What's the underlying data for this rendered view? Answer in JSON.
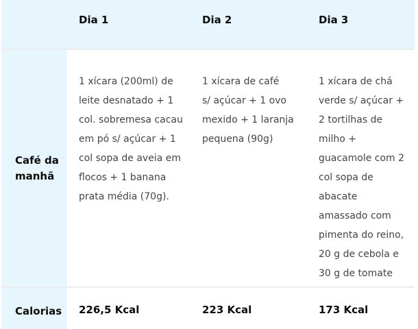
{
  "page": {
    "background": "#ffffff",
    "accent_cell_bg": "#e7f5fd",
    "divider_color": "#e9edef",
    "header_text_color": "#0d0d0d",
    "body_text_color": "#414549"
  },
  "table": {
    "corner_label": "",
    "columns": [
      "Dia 1",
      "Dia 2",
      "Dia 3"
    ],
    "rows": [
      {
        "label": "Café da\nmanhã",
        "cells": [
          "1 xícara (200ml) de\nleite desnatado + 1\ncol. sobremesa cacau\nem pó s/ açúcar + 1\ncol sopa de aveia em\nflocos + 1 banana\nprata média (70g).",
          "1 xícara de café\ns/ açúcar + 1 ovo\nmexido + 1 laranja\npequena (90g)",
          "1 xícara de chá\nverde s/ açúcar +\n2 tortilhas de\nmilho +\nguacamole com 2\ncol sopa de\nabacate\namassado com\npimenta do reino,\n20 g de cebola e\n30 g de tomate"
        ]
      },
      {
        "label": "Calorias",
        "cells": [
          "226,5 Kcal",
          "223 Kcal",
          "173 Kcal"
        ]
      }
    ]
  }
}
